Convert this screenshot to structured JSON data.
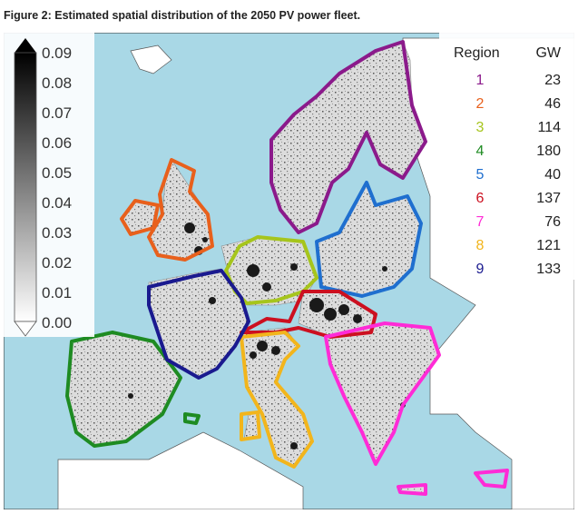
{
  "figure": {
    "caption": "Figure 2: Estimated spatial distribution of the 2050 PV power fleet."
  },
  "colorbar": {
    "ticks": [
      "0.09",
      "0.08",
      "0.07",
      "0.06",
      "0.05",
      "0.04",
      "0.03",
      "0.02",
      "0.01",
      "0.00"
    ]
  },
  "legend": {
    "header_region": "Region",
    "header_gw": "GW",
    "rows": [
      {
        "region": "1",
        "gw": "23",
        "color": "#8b1a8b"
      },
      {
        "region": "2",
        "gw": "46",
        "color": "#e8601c"
      },
      {
        "region": "3",
        "gw": "114",
        "color": "#a6c51c"
      },
      {
        "region": "4",
        "gw": "180",
        "color": "#1e8b22"
      },
      {
        "region": "5",
        "gw": "40",
        "color": "#1f6fcf"
      },
      {
        "region": "6",
        "gw": "137",
        "color": "#cc1020"
      },
      {
        "region": "7",
        "gw": "76",
        "color": "#ff2bd6"
      },
      {
        "region": "8",
        "gw": "121",
        "color": "#f2b51c"
      },
      {
        "region": "9",
        "gw": "133",
        "color": "#1a1a8f"
      }
    ]
  },
  "colors": {
    "sea": "#a9d8e6",
    "land_outside": "#ffffff",
    "land_inside": "#d9d9d9",
    "dense_pv": "#1a1a1a"
  }
}
